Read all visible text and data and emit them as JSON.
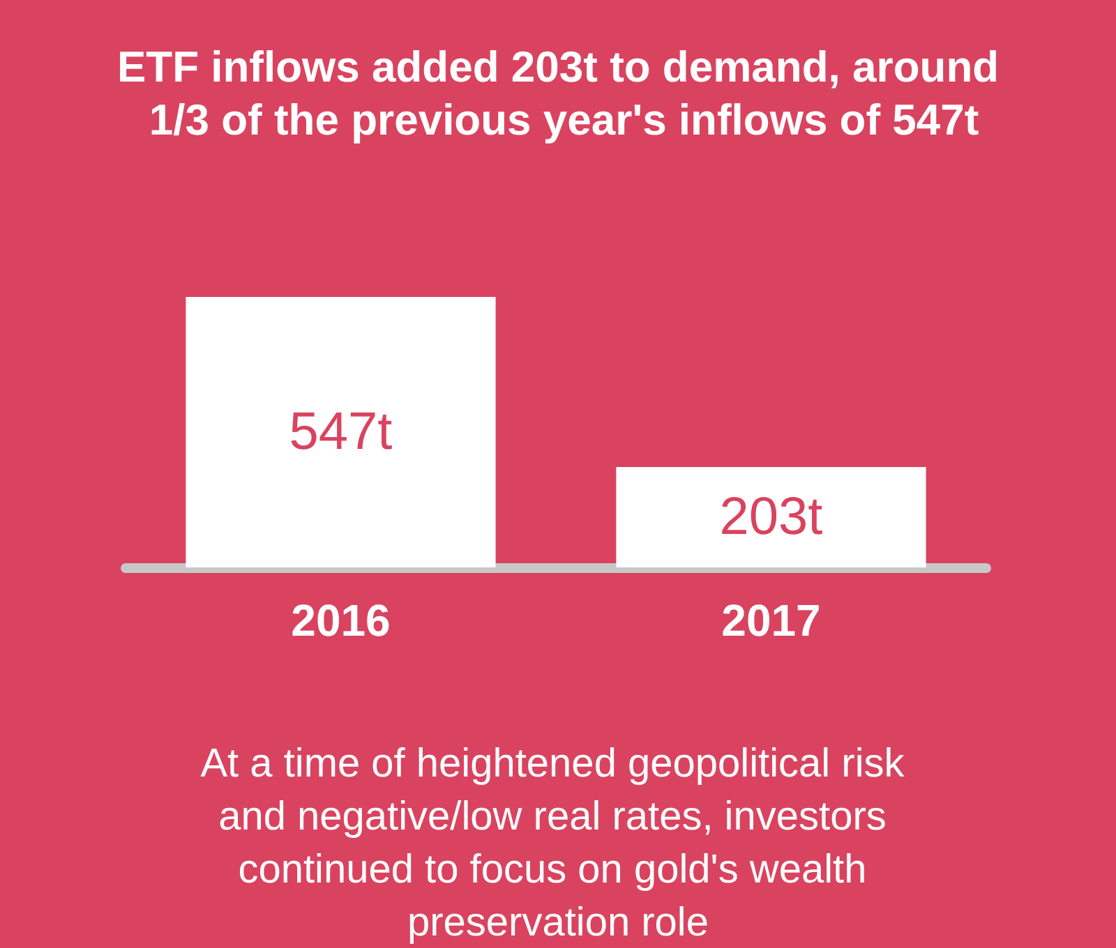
{
  "chart_data": {
    "type": "bar",
    "title": "ETF inflows added 203t to demand, around 1/3 of the previous year's inflows of 547t",
    "categories": [
      "2016",
      "2017"
    ],
    "values": [
      547,
      203
    ],
    "value_labels": [
      "547t",
      "203t"
    ],
    "color": "#ffffff",
    "annotations": [
      "At a time of heightened geopolitical risk and negative/low real rates, investors continued to focus on gold's wealth preservation role"
    ]
  }
}
